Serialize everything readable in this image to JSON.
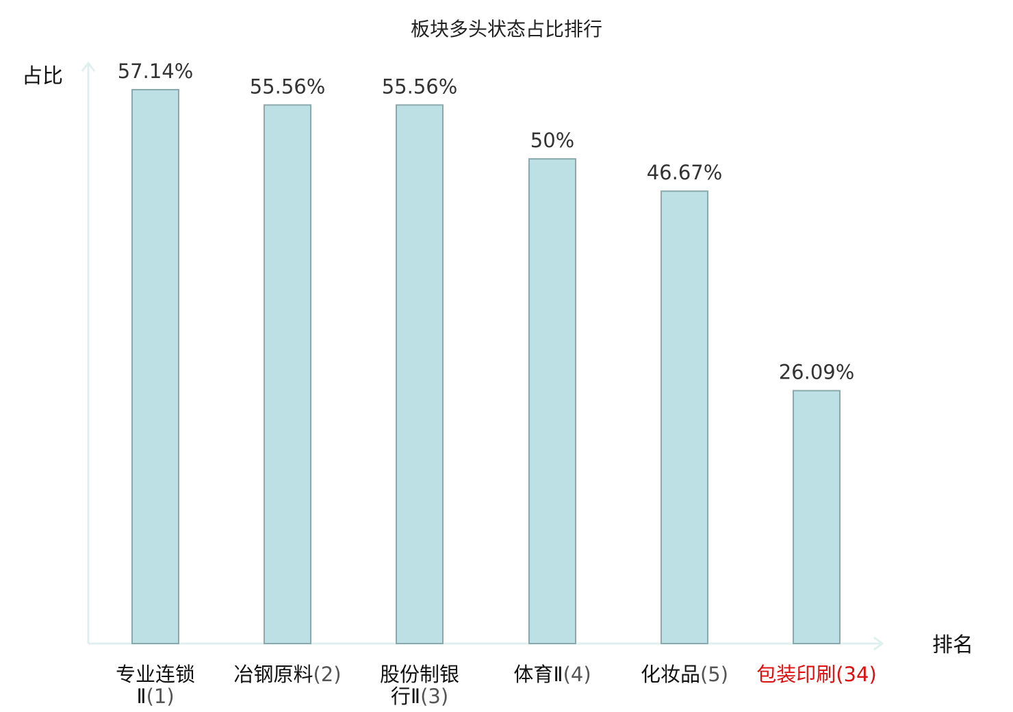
{
  "chart_data": {
    "type": "bar",
    "title": "板块多头状态占比排行",
    "ylabel": "占比",
    "xlabel": "排名",
    "ylim": [
      0,
      60
    ],
    "grid": false,
    "categories": [
      {
        "lines": [
          {
            "name": "专业连锁",
            "rank": ""
          },
          {
            "name": "Ⅱ",
            "rank": "(1)"
          }
        ],
        "highlight": false
      },
      {
        "lines": [
          {
            "name": "冶钢原料",
            "rank": "(2)"
          }
        ],
        "highlight": false
      },
      {
        "lines": [
          {
            "name": "股份制银",
            "rank": ""
          },
          {
            "name": "行Ⅱ",
            "rank": "(3)"
          }
        ],
        "highlight": false
      },
      {
        "lines": [
          {
            "name": "体育Ⅱ",
            "rank": "(4)"
          }
        ],
        "highlight": false
      },
      {
        "lines": [
          {
            "name": "化妆品",
            "rank": "(5)"
          }
        ],
        "highlight": false
      },
      {
        "lines": [
          {
            "name": "包装印刷",
            "rank": "(34)"
          }
        ],
        "highlight": true
      }
    ],
    "values": [
      57.14,
      55.56,
      55.56,
      50,
      46.67,
      26.09
    ],
    "value_labels": [
      "57.14%",
      "55.56%",
      "55.56%",
      "50%",
      "46.67%",
      "26.09%"
    ],
    "colors": {
      "bar_fill": "#bce0e3",
      "bar_stroke": "#8aa9ac",
      "axis": "#dff0ee",
      "highlight": "#dd1111"
    }
  }
}
